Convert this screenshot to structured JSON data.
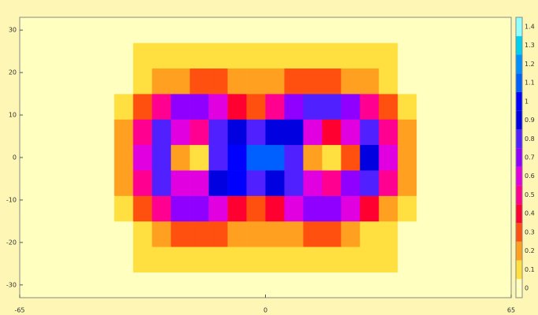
{
  "chart_data": {
    "type": "heatmap",
    "xlim": [
      -65,
      65
    ],
    "ylim": [
      -33,
      33
    ],
    "xticks": [
      -65,
      0,
      65
    ],
    "yticks": [
      -30,
      -20,
      -10,
      0,
      10,
      20,
      30
    ],
    "xbins": [
      -65,
      -60,
      -55,
      -50,
      -45,
      -40,
      -35,
      -30,
      -25,
      -20,
      -15,
      -10,
      -5,
      0,
      5,
      10,
      15,
      20,
      25,
      30,
      35,
      40,
      45,
      50,
      55,
      60,
      65
    ],
    "ybins": [
      -33,
      -27,
      -21,
      -15,
      -9,
      -3,
      3,
      9,
      15,
      21,
      27,
      33
    ],
    "z": [
      [
        0.05,
        0.05,
        0.05,
        0.05,
        0.05,
        0.05,
        0.05,
        0.05,
        0.05,
        0.05,
        0.05,
        0.05,
        0.05,
        0.05,
        0.05,
        0.05,
        0.05,
        0.05,
        0.05,
        0.05,
        0.05,
        0.05,
        0.05,
        0.05,
        0.05,
        0.05
      ],
      [
        0.05,
        0.05,
        0.05,
        0.05,
        0.05,
        0.05,
        0.1,
        0.1,
        0.1,
        0.1,
        0.1,
        0.1,
        0.1,
        0.1,
        0.1,
        0.1,
        0.1,
        0.1,
        0.1,
        0.1,
        0.05,
        0.05,
        0.05,
        0.05,
        0.05,
        0.05
      ],
      [
        0.08,
        0.08,
        0.08,
        0.08,
        0.08,
        0.08,
        0.15,
        0.2,
        0.3,
        0.3,
        0.3,
        0.25,
        0.2,
        0.2,
        0.25,
        0.3,
        0.3,
        0.2,
        0.15,
        0.1,
        0.08,
        0.08,
        0.08,
        0.08,
        0.08,
        0.08
      ],
      [
        0.08,
        0.08,
        0.08,
        0.08,
        0.08,
        0.15,
        0.3,
        0.5,
        0.7,
        0.7,
        0.6,
        0.4,
        0.35,
        0.4,
        0.6,
        0.7,
        0.7,
        0.6,
        0.4,
        0.25,
        0.1,
        0.08,
        0.08,
        0.08,
        0.08,
        0.08
      ],
      [
        0.08,
        0.08,
        0.08,
        0.08,
        0.08,
        0.2,
        0.5,
        0.8,
        0.6,
        0.6,
        0.9,
        1.0,
        0.8,
        0.9,
        0.8,
        0.6,
        0.5,
        0.7,
        0.8,
        0.5,
        0.2,
        0.08,
        0.08,
        0.08,
        0.08,
        0.08
      ],
      [
        0.08,
        0.08,
        0.08,
        0.08,
        0.08,
        0.25,
        0.6,
        0.8,
        0.2,
        0.15,
        0.8,
        1.0,
        1.1,
        1.1,
        0.8,
        0.2,
        0.15,
        0.3,
        0.9,
        0.6,
        0.25,
        0.08,
        0.08,
        0.08,
        0.08,
        0.08
      ],
      [
        0.08,
        0.08,
        0.08,
        0.08,
        0.08,
        0.2,
        0.5,
        0.8,
        0.6,
        0.5,
        0.8,
        0.9,
        0.8,
        0.9,
        0.9,
        0.6,
        0.4,
        0.6,
        0.8,
        0.5,
        0.2,
        0.08,
        0.08,
        0.08,
        0.08,
        0.08
      ],
      [
        0.08,
        0.08,
        0.08,
        0.08,
        0.08,
        0.15,
        0.3,
        0.5,
        0.7,
        0.7,
        0.6,
        0.4,
        0.35,
        0.5,
        0.7,
        0.8,
        0.8,
        0.7,
        0.5,
        0.3,
        0.15,
        0.08,
        0.08,
        0.08,
        0.08,
        0.08
      ],
      [
        0.08,
        0.08,
        0.08,
        0.08,
        0.08,
        0.08,
        0.15,
        0.2,
        0.25,
        0.3,
        0.3,
        0.25,
        0.25,
        0.25,
        0.3,
        0.3,
        0.3,
        0.25,
        0.2,
        0.15,
        0.08,
        0.08,
        0.08,
        0.08,
        0.08,
        0.08
      ],
      [
        0.05,
        0.05,
        0.05,
        0.05,
        0.05,
        0.05,
        0.1,
        0.1,
        0.15,
        0.15,
        0.15,
        0.15,
        0.15,
        0.15,
        0.15,
        0.15,
        0.15,
        0.15,
        0.1,
        0.1,
        0.05,
        0.05,
        0.05,
        0.05,
        0.05,
        0.05
      ],
      [
        0.05,
        0.05,
        0.05,
        0.05,
        0.05,
        0.05,
        0.05,
        0.05,
        0.05,
        0.05,
        0.05,
        0.05,
        0.05,
        0.05,
        0.05,
        0.05,
        0.05,
        0.05,
        0.05,
        0.05,
        0.05,
        0.05,
        0.05,
        0.05,
        0.05,
        0.05
      ]
    ],
    "zlim": [
      0,
      1.5
    ],
    "zticks": [
      0,
      0.1,
      0.2,
      0.3,
      0.4,
      0.5,
      0.6,
      0.7,
      0.8,
      0.9,
      1,
      1.1,
      1.2,
      1.3,
      1.4
    ],
    "colorscale": [
      "#ffffc0",
      "#ffe040",
      "#ffa020",
      "#ff5010",
      "#ff0030",
      "#ff0090",
      "#e000e0",
      "#9000ff",
      "#5020ff",
      "#0000e0",
      "#0000ff",
      "#0060ff",
      "#0090ff",
      "#00d0f0",
      "#90ffff"
    ]
  }
}
